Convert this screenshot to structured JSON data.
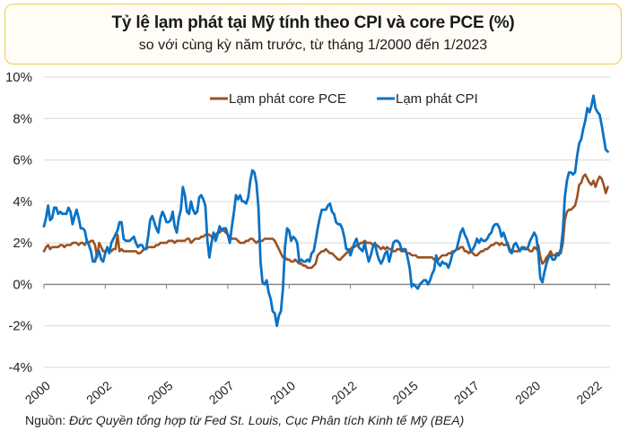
{
  "title": "Tỷ lệ lạm phát tại Mỹ tính theo CPI và core PCE (%)",
  "subtitle": "so với cùng kỳ năm trước, từ tháng 1/2000 đến 1/2023",
  "source_prefix": "Nguồn:",
  "source_text": "Đức Quyền tổng hợp từ Fed St. Louis, Cục Phân tích Kinh tế Mỹ (BEA)",
  "colors": {
    "core_pce": "#9c5222",
    "cpi": "#0b72c4",
    "grid": "#d9d9d9",
    "axis": "#808080",
    "title_border": "#f2c94c"
  },
  "chart_data": {
    "type": "line",
    "title": "Tỷ lệ lạm phát tại Mỹ tính theo CPI và core PCE (%)",
    "subtitle": "so với cùng kỳ năm trước, từ tháng 1/2000 đến 1/2023",
    "xlabel": "",
    "ylabel": "",
    "x_start": "2000-01",
    "x_end": "2023-01",
    "frequency": "monthly",
    "ylim": [
      -4,
      10
    ],
    "yticks": [
      -4,
      -2,
      0,
      2,
      4,
      6,
      8,
      10
    ],
    "ytick_labels": [
      "-4%",
      "-2%",
      "0%",
      "2%",
      "4%",
      "6%",
      "8%",
      "10%"
    ],
    "xtick_positions_months_from_start": [
      0,
      30,
      60,
      90,
      120,
      150,
      180,
      210,
      240,
      270
    ],
    "xtick_labels": [
      "2000",
      "2002",
      "2005",
      "2007",
      "2010",
      "2012",
      "2015",
      "2017",
      "2020",
      "2022"
    ],
    "grid": true,
    "legend_position": "top-center",
    "series": [
      {
        "name": "Lạm phát core PCE",
        "color": "#9c5222",
        "values": [
          1.6,
          1.8,
          1.9,
          1.7,
          1.8,
          1.8,
          1.8,
          1.8,
          1.9,
          1.9,
          1.8,
          1.9,
          1.9,
          1.9,
          2.0,
          2.0,
          2.0,
          1.9,
          2.0,
          2.0,
          1.9,
          2.1,
          2.0,
          2.1,
          2.1,
          1.9,
          1.3,
          2.0,
          1.8,
          1.6,
          1.6,
          1.7,
          1.7,
          1.6,
          1.7,
          1.7,
          2.4,
          1.6,
          1.7,
          1.6,
          1.6,
          1.6,
          1.6,
          1.6,
          1.6,
          1.6,
          1.5,
          1.5,
          1.6,
          1.7,
          1.7,
          1.8,
          1.8,
          1.8,
          1.8,
          1.9,
          1.9,
          2.0,
          2.0,
          2.0,
          2.0,
          2.1,
          2.1,
          2.1,
          2.0,
          2.1,
          2.1,
          2.1,
          2.1,
          2.1,
          2.2,
          2.2,
          2.0,
          2.1,
          2.2,
          2.2,
          2.2,
          2.3,
          2.3,
          2.4,
          2.4,
          2.4,
          2.3,
          2.3,
          2.4,
          2.5,
          2.5,
          2.6,
          2.6,
          2.5,
          2.4,
          2.3,
          2.2,
          2.2,
          2.2,
          2.1,
          2.0,
          2.0,
          2.0,
          2.1,
          2.1,
          2.2,
          2.2,
          2.1,
          2.0,
          2.1,
          2.1,
          2.1,
          2.2,
          2.2,
          2.2,
          2.2,
          2.2,
          2.1,
          1.9,
          1.7,
          1.5,
          1.3,
          1.3,
          1.2,
          1.2,
          1.1,
          1.1,
          1.2,
          1.1,
          1.0,
          1.0,
          0.9,
          0.9,
          0.8,
          0.8,
          0.8,
          0.9,
          1.0,
          1.4,
          1.5,
          1.6,
          1.6,
          1.7,
          1.6,
          1.5,
          1.5,
          1.4,
          1.3,
          1.2,
          1.2,
          1.3,
          1.4,
          1.5,
          1.6,
          1.7,
          1.8,
          1.8,
          1.9,
          1.9,
          2.0,
          2.0,
          2.1,
          2.0,
          2.0,
          2.0,
          1.9,
          1.9,
          1.9,
          1.8,
          1.7,
          1.8,
          1.7,
          1.8,
          1.7,
          1.7,
          1.6,
          1.6,
          1.7,
          1.7,
          1.6,
          1.6,
          1.6,
          1.5,
          1.5,
          1.4,
          1.4,
          1.4,
          1.3,
          1.3,
          1.3,
          1.3,
          1.3,
          1.3,
          1.3,
          1.3,
          1.2,
          1.2,
          1.2,
          1.3,
          1.4,
          1.4,
          1.4,
          1.5,
          1.5,
          1.6,
          1.6,
          1.7,
          1.7,
          1.8,
          1.8,
          1.6,
          1.6,
          1.5,
          1.6,
          1.5,
          1.4,
          1.4,
          1.5,
          1.6,
          1.6,
          1.7,
          1.7,
          1.8,
          1.9,
          1.9,
          2.0,
          2.0,
          1.9,
          2.0,
          1.9,
          1.9,
          2.0,
          1.7,
          1.6,
          1.6,
          1.6,
          1.6,
          1.7,
          1.7,
          1.8,
          1.7,
          1.7,
          1.6,
          1.6,
          1.8,
          1.7,
          1.9,
          1.3,
          1.0,
          1.1,
          1.3,
          1.4,
          1.6,
          1.4,
          1.4,
          1.5,
          1.5,
          1.5,
          2.0,
          3.1,
          3.5,
          3.6,
          3.6,
          3.7,
          3.8,
          4.2,
          4.8,
          4.9,
          5.2,
          5.3,
          5.1,
          4.9,
          4.8,
          5.0,
          4.7,
          5.0,
          5.2,
          5.1,
          4.8,
          4.4,
          4.7
        ]
      },
      {
        "name": "Lạm phát CPI",
        "color": "#0b72c4",
        "values": [
          2.8,
          3.2,
          3.8,
          3.1,
          3.2,
          3.7,
          3.7,
          3.4,
          3.5,
          3.4,
          3.4,
          3.4,
          3.7,
          3.5,
          2.9,
          3.3,
          3.6,
          3.2,
          2.7,
          2.7,
          2.6,
          2.1,
          1.9,
          1.6,
          1.1,
          1.1,
          1.5,
          1.6,
          1.2,
          1.1,
          1.5,
          1.8,
          1.5,
          2.0,
          2.2,
          2.4,
          2.6,
          3.0,
          3.0,
          2.2,
          2.1,
          2.1,
          2.1,
          2.2,
          2.3,
          2.0,
          1.8,
          1.9,
          1.9,
          1.7,
          1.7,
          2.3,
          3.1,
          3.3,
          3.0,
          2.7,
          2.5,
          3.2,
          3.5,
          3.3,
          3.0,
          3.0,
          3.1,
          3.5,
          2.8,
          2.5,
          3.2,
          3.6,
          4.7,
          4.3,
          3.5,
          3.4,
          4.0,
          3.6,
          3.4,
          3.5,
          4.2,
          4.3,
          4.1,
          3.8,
          2.1,
          1.3,
          2.0,
          2.5,
          2.1,
          2.4,
          2.8,
          2.6,
          2.7,
          2.7,
          2.4,
          2.0,
          2.8,
          3.5,
          4.3,
          4.1,
          4.3,
          4.0,
          4.0,
          3.9,
          4.2,
          5.0,
          5.5,
          5.4,
          4.9,
          3.7,
          1.1,
          0.1,
          0.0,
          0.2,
          -0.4,
          -0.7,
          -1.3,
          -1.4,
          -2.0,
          -1.5,
          -1.3,
          -0.2,
          1.8,
          2.7,
          2.6,
          2.1,
          2.3,
          2.2,
          2.0,
          1.1,
          1.2,
          1.1,
          1.1,
          1.2,
          1.1,
          1.5,
          1.6,
          2.1,
          2.7,
          3.2,
          3.6,
          3.6,
          3.6,
          3.8,
          3.9,
          3.5,
          3.4,
          3.0,
          2.9,
          2.9,
          2.7,
          2.3,
          1.7,
          1.7,
          1.4,
          1.7,
          2.0,
          2.2,
          1.8,
          1.7,
          1.6,
          2.0,
          1.5,
          1.1,
          1.4,
          1.8,
          2.0,
          1.5,
          1.2,
          1.0,
          1.2,
          1.5,
          1.6,
          1.1,
          1.5,
          2.0,
          2.1,
          2.1,
          2.0,
          1.7,
          1.7,
          1.7,
          1.3,
          0.8,
          -0.1,
          0.0,
          -0.1,
          -0.2,
          0.0,
          0.1,
          0.2,
          0.2,
          0.0,
          0.2,
          0.5,
          0.7,
          1.4,
          1.0,
          0.9,
          1.1,
          1.0,
          1.0,
          0.8,
          1.1,
          1.5,
          1.6,
          1.7,
          2.1,
          2.5,
          2.7,
          2.4,
          2.2,
          1.9,
          1.6,
          1.7,
          1.9,
          2.2,
          2.0,
          2.2,
          2.1,
          2.1,
          2.2,
          2.4,
          2.5,
          2.8,
          2.9,
          2.9,
          2.7,
          2.3,
          2.5,
          2.2,
          1.9,
          1.6,
          1.5,
          1.9,
          2.0,
          1.8,
          1.6,
          1.8,
          1.7,
          1.7,
          1.8,
          2.1,
          2.3,
          2.5,
          2.3,
          1.5,
          0.3,
          0.1,
          0.6,
          1.0,
          1.3,
          1.4,
          1.2,
          1.2,
          1.4,
          1.4,
          1.7,
          2.6,
          4.2,
          5.0,
          5.4,
          5.4,
          5.3,
          5.4,
          6.2,
          6.8,
          7.0,
          7.5,
          7.9,
          8.5,
          8.3,
          8.6,
          9.1,
          8.5,
          8.3,
          8.2,
          7.7,
          7.1,
          6.5,
          6.4
        ]
      }
    ]
  }
}
